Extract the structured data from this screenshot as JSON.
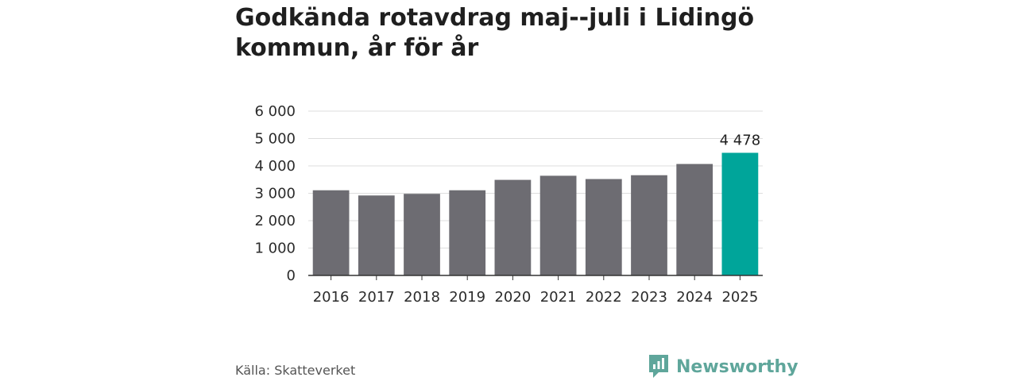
{
  "title": "Godkända rotavdrag maj--juli i Lidingö kommun, år för år",
  "source": "Källa: Skatteverket",
  "brand": "Newsworthy",
  "colors": {
    "bar": "#6d6c72",
    "highlight": "#00a59a",
    "brand": "#5fa69b"
  },
  "chart_data": {
    "type": "bar",
    "categories": [
      "2016",
      "2017",
      "2018",
      "2019",
      "2020",
      "2021",
      "2022",
      "2023",
      "2024",
      "2025"
    ],
    "values": [
      3110,
      2920,
      2980,
      3110,
      3490,
      3640,
      3520,
      3660,
      4070,
      4478
    ],
    "highlight_index": 9,
    "data_labels": [
      {
        "index": 9,
        "text": "4 478"
      }
    ],
    "ylim": [
      0,
      6000
    ],
    "yticks": [
      0,
      1000,
      2000,
      3000,
      4000,
      5000,
      6000
    ],
    "ytick_labels": [
      "0",
      "1 000",
      "2 000",
      "3 000",
      "4 000",
      "5 000",
      "6 000"
    ],
    "grid": true,
    "xlabel": "",
    "ylabel": ""
  }
}
